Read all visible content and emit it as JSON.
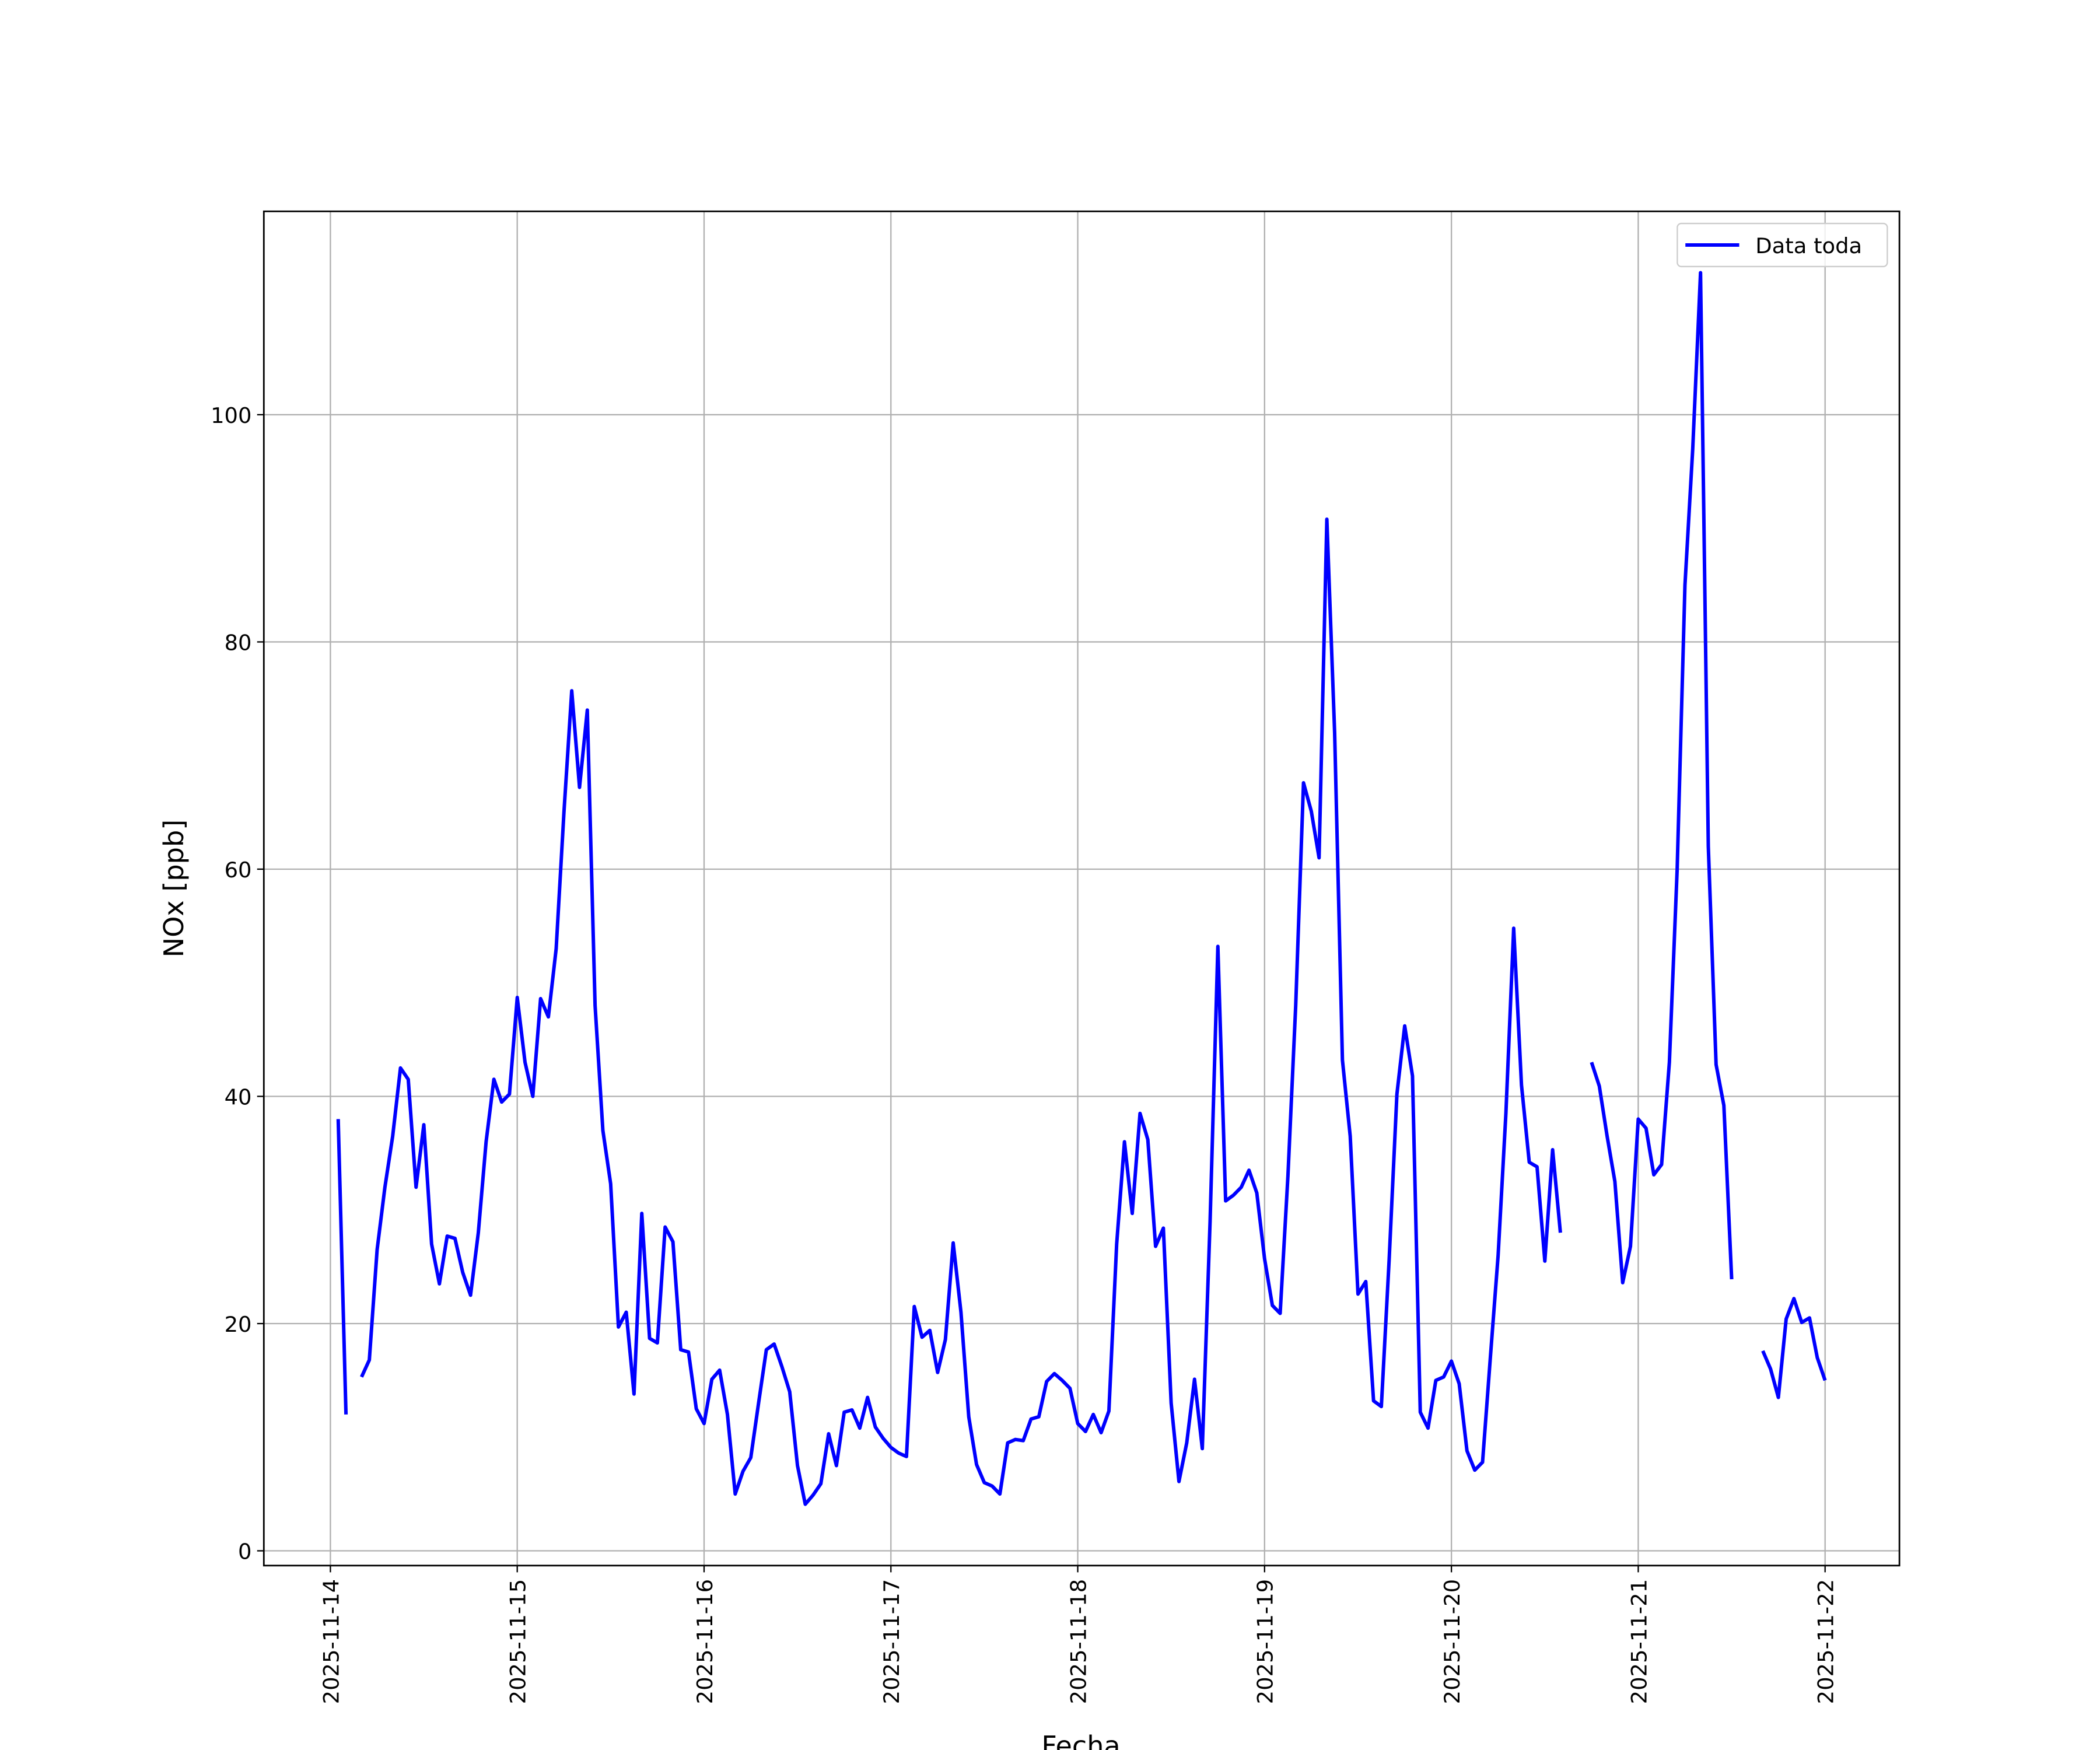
{
  "chart_data": {
    "type": "line",
    "xlabel": "Fecha",
    "ylabel": "NOx [ppb]",
    "x": [
      "2025-11-14 01:00",
      "2025-11-14 02:00",
      "2025-11-14 03:00",
      "2025-11-14 04:00",
      "2025-11-14 05:00",
      "2025-11-14 06:00",
      "2025-11-14 07:00",
      "2025-11-14 08:00",
      "2025-11-14 09:00",
      "2025-11-14 10:00",
      "2025-11-14 11:00",
      "2025-11-14 12:00",
      "2025-11-14 13:00",
      "2025-11-14 14:00",
      "2025-11-14 15:00",
      "2025-11-14 16:00",
      "2025-11-14 17:00",
      "2025-11-14 18:00",
      "2025-11-14 19:00",
      "2025-11-14 20:00",
      "2025-11-14 21:00",
      "2025-11-14 22:00",
      "2025-11-14 23:00",
      "2025-11-15 00:00",
      "2025-11-15 01:00",
      "2025-11-15 02:00",
      "2025-11-15 03:00",
      "2025-11-15 04:00",
      "2025-11-15 05:00",
      "2025-11-15 06:00",
      "2025-11-15 07:00",
      "2025-11-15 08:00",
      "2025-11-15 09:00",
      "2025-11-15 10:00",
      "2025-11-15 11:00",
      "2025-11-15 12:00",
      "2025-11-15 13:00",
      "2025-11-15 14:00",
      "2025-11-15 15:00",
      "2025-11-15 16:00",
      "2025-11-15 17:00",
      "2025-11-15 18:00",
      "2025-11-15 19:00",
      "2025-11-15 20:00",
      "2025-11-15 21:00",
      "2025-11-15 22:00",
      "2025-11-15 23:00",
      "2025-11-16 00:00",
      "2025-11-16 01:00",
      "2025-11-16 02:00",
      "2025-11-16 03:00",
      "2025-11-16 04:00",
      "2025-11-16 05:00",
      "2025-11-16 06:00",
      "2025-11-16 07:00",
      "2025-11-16 08:00",
      "2025-11-16 09:00",
      "2025-11-16 10:00",
      "2025-11-16 11:00",
      "2025-11-16 12:00",
      "2025-11-16 13:00",
      "2025-11-16 14:00",
      "2025-11-16 15:00",
      "2025-11-16 16:00",
      "2025-11-16 17:00",
      "2025-11-16 18:00",
      "2025-11-16 19:00",
      "2025-11-16 20:00",
      "2025-11-16 21:00",
      "2025-11-16 22:00",
      "2025-11-16 23:00",
      "2025-11-17 00:00",
      "2025-11-17 01:00",
      "2025-11-17 02:00",
      "2025-11-17 03:00",
      "2025-11-17 04:00",
      "2025-11-17 05:00",
      "2025-11-17 06:00",
      "2025-11-17 07:00",
      "2025-11-17 08:00",
      "2025-11-17 09:00",
      "2025-11-17 10:00",
      "2025-11-17 11:00",
      "2025-11-17 12:00",
      "2025-11-17 13:00",
      "2025-11-17 14:00",
      "2025-11-17 15:00",
      "2025-11-17 16:00",
      "2025-11-17 17:00",
      "2025-11-17 18:00",
      "2025-11-17 19:00",
      "2025-11-17 20:00",
      "2025-11-17 21:00",
      "2025-11-17 22:00",
      "2025-11-17 23:00",
      "2025-11-18 00:00",
      "2025-11-18 01:00",
      "2025-11-18 02:00",
      "2025-11-18 03:00",
      "2025-11-18 04:00",
      "2025-11-18 05:00",
      "2025-11-18 06:00",
      "2025-11-18 07:00",
      "2025-11-18 08:00",
      "2025-11-18 09:00",
      "2025-11-18 10:00",
      "2025-11-18 11:00",
      "2025-11-18 12:00",
      "2025-11-18 13:00",
      "2025-11-18 14:00",
      "2025-11-18 15:00",
      "2025-11-18 16:00",
      "2025-11-18 17:00",
      "2025-11-18 18:00",
      "2025-11-18 19:00",
      "2025-11-18 20:00",
      "2025-11-18 21:00",
      "2025-11-18 22:00",
      "2025-11-18 23:00",
      "2025-11-19 00:00",
      "2025-11-19 01:00",
      "2025-11-19 02:00",
      "2025-11-19 03:00",
      "2025-11-19 04:00",
      "2025-11-19 05:00",
      "2025-11-19 06:00",
      "2025-11-19 07:00",
      "2025-11-19 08:00",
      "2025-11-19 09:00",
      "2025-11-19 10:00",
      "2025-11-19 11:00",
      "2025-11-19 12:00",
      "2025-11-19 13:00",
      "2025-11-19 14:00",
      "2025-11-19 15:00",
      "2025-11-19 16:00",
      "2025-11-19 17:00",
      "2025-11-19 18:00",
      "2025-11-19 19:00",
      "2025-11-19 20:00",
      "2025-11-19 21:00",
      "2025-11-19 22:00",
      "2025-11-19 23:00",
      "2025-11-20 00:00",
      "2025-11-20 01:00",
      "2025-11-20 02:00",
      "2025-11-20 03:00",
      "2025-11-20 04:00",
      "2025-11-20 05:00",
      "2025-11-20 06:00",
      "2025-11-20 07:00",
      "2025-11-20 08:00",
      "2025-11-20 09:00",
      "2025-11-20 10:00",
      "2025-11-20 11:00",
      "2025-11-20 12:00",
      "2025-11-20 13:00",
      "2025-11-20 14:00",
      "2025-11-20 15:00",
      "2025-11-20 16:00",
      "2025-11-20 17:00",
      "2025-11-20 18:00",
      "2025-11-20 19:00",
      "2025-11-20 20:00",
      "2025-11-20 21:00",
      "2025-11-20 22:00",
      "2025-11-20 23:00",
      "2025-11-21 00:00",
      "2025-11-21 01:00",
      "2025-11-21 02:00",
      "2025-11-21 03:00",
      "2025-11-21 04:00",
      "2025-11-21 05:00",
      "2025-11-21 06:00",
      "2025-11-21 07:00",
      "2025-11-21 08:00",
      "2025-11-21 09:00",
      "2025-11-21 10:00",
      "2025-11-21 11:00",
      "2025-11-21 12:00",
      "2025-11-21 13:00",
      "2025-11-21 14:00",
      "2025-11-21 15:00",
      "2025-11-21 16:00",
      "2025-11-21 17:00",
      "2025-11-21 18:00",
      "2025-11-21 19:00",
      "2025-11-21 20:00",
      "2025-11-21 21:00",
      "2025-11-21 22:00",
      "2025-11-21 23:00",
      "2025-11-22 00:00"
    ],
    "series": [
      {
        "name": "Data toda",
        "color": "#0000ff",
        "values": [
          38,
          12,
          null,
          15.3,
          16.8,
          26.5,
          32,
          36.5,
          42.5,
          41.5,
          32,
          37.5,
          27,
          23.5,
          27.7,
          27.5,
          24.5,
          22.5,
          28,
          36,
          41.5,
          39.5,
          40.2,
          48.7,
          43,
          40,
          48.6,
          47,
          53,
          65,
          75.7,
          67.2,
          74,
          48,
          37,
          32.3,
          19.7,
          21,
          13.8,
          29.7,
          18.7,
          18.3,
          28.5,
          27.2,
          17.7,
          17.5,
          12.5,
          11.2,
          15.1,
          15.9,
          12,
          5,
          7,
          8.2,
          13,
          17.7,
          18.2,
          16.2,
          14,
          7.5,
          4.1,
          4.9,
          5.9,
          10.3,
          7.5,
          12.2,
          12.4,
          10.8,
          13.5,
          10.9,
          9.9,
          9.1,
          8.6,
          8.3,
          21.5,
          18.8,
          19.4,
          15.7,
          18.6,
          27.1,
          21,
          11.8,
          7.6,
          6,
          5.7,
          5,
          9.5,
          9.8,
          9.7,
          11.6,
          11.8,
          14.9,
          15.6,
          15,
          14.3,
          11.2,
          10.5,
          12,
          10.4,
          12.3,
          27,
          36,
          29.7,
          38.5,
          36.2,
          26.8,
          28.4,
          13,
          6.1,
          9.5,
          15.1,
          9,
          29,
          53.2,
          30.8,
          31.3,
          32,
          33.5,
          31.5,
          25.7,
          21.6,
          20.9,
          33,
          48,
          67.6,
          65.1,
          61,
          90.8,
          72,
          43.2,
          36.5,
          22.6,
          23.7,
          13.2,
          12.7,
          25.6,
          40.2,
          46.2,
          41.8,
          12.2,
          10.8,
          15,
          15.3,
          16.7,
          14.7,
          8.8,
          7.1,
          7.8,
          17,
          26,
          38.5,
          54.8,
          41,
          34.2,
          33.8,
          25.5,
          35.3,
          28,
          null,
          null,
          null,
          43,
          40.9,
          36.5,
          32.5,
          23.6,
          26.8,
          38,
          37.2,
          33.1,
          34,
          43,
          60,
          85,
          97,
          112.5,
          62,
          42.8,
          39.2,
          23.9,
          null,
          null,
          null,
          17.6,
          16,
          13.5,
          20.4,
          22.2,
          20.1,
          20.5,
          17,
          15
        ]
      }
    ],
    "xlim": [
      "2025-11-13 15:27",
      "2025-11-22 09:33"
    ],
    "xticks": [
      "2025-11-14",
      "2025-11-15",
      "2025-11-16",
      "2025-11-17",
      "2025-11-18",
      "2025-11-19",
      "2025-11-20",
      "2025-11-21",
      "2025-11-22"
    ],
    "ylim": [
      -1.3,
      117.9
    ],
    "yticks": [
      0,
      20,
      40,
      60,
      80,
      100
    ],
    "grid": true,
    "legend": "upper right"
  }
}
